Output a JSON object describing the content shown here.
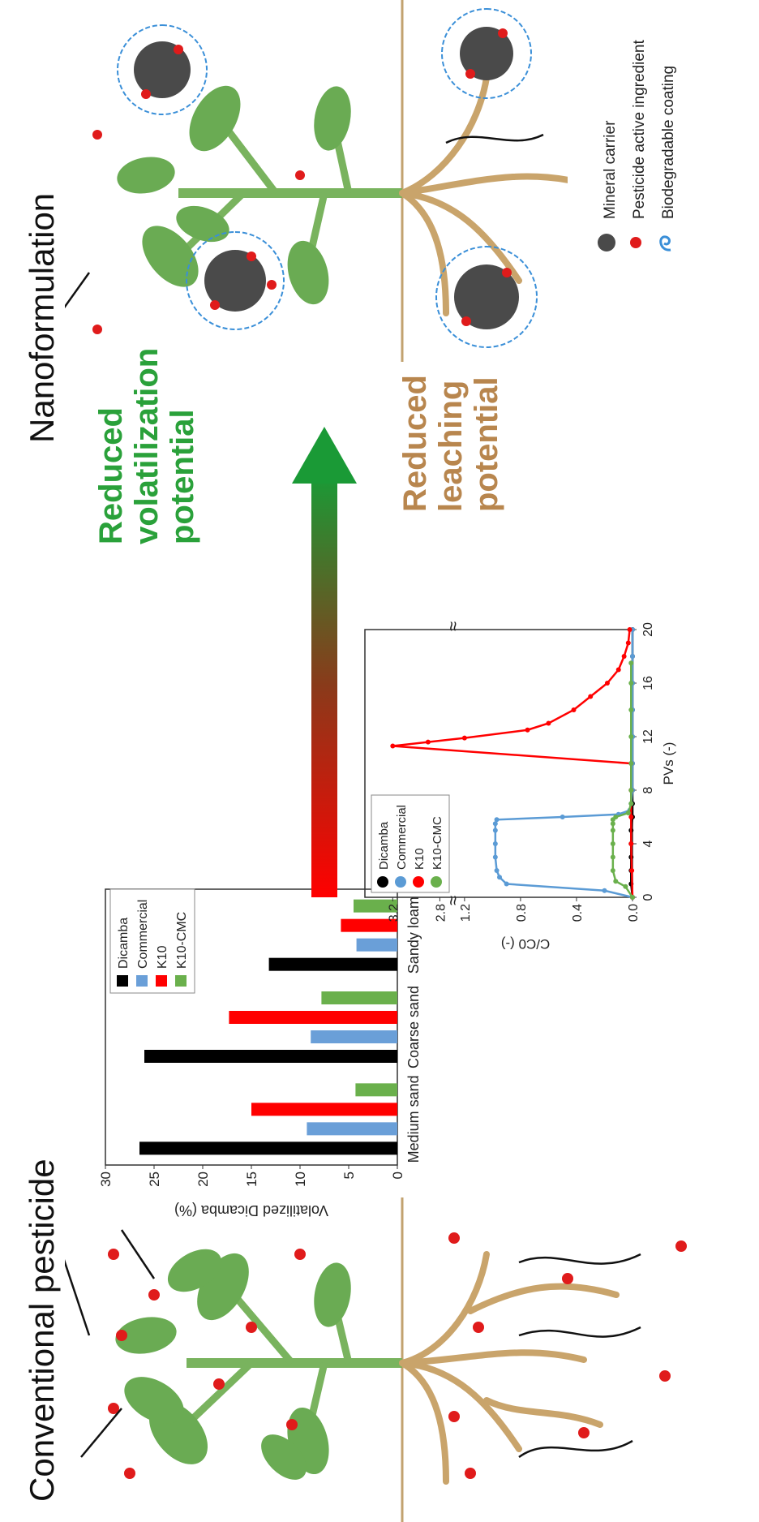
{
  "panels": {
    "left_title": "Conventional pesticide",
    "right_title": "Nanoformulation"
  },
  "effects": {
    "volatilization_lines": [
      "Reduced",
      "volatilization",
      "potential"
    ],
    "leaching_lines": [
      "Reduced",
      "leaching",
      "potential"
    ],
    "arrow_colors": {
      "start": "#ff0000",
      "end": "#1a9a36"
    }
  },
  "legend": {
    "mineral_carrier": "Mineral carrier",
    "pesticide_active": "Pesticide active ingredient",
    "biodegradable_coating": "Biodegradable coating"
  },
  "colors": {
    "leaf": "#6aab53",
    "stem": "#79b35e",
    "root": "#c9a46b",
    "ground": "#c2a26f",
    "droplet": "#e01b1b",
    "carrier": "#4a4a4a",
    "coating": "#3a8fd8"
  },
  "chart_data": [
    {
      "type": "bar",
      "ylabel": "Volatilized Dicamba (%)",
      "ylim": [
        0,
        30
      ],
      "yticks": [
        "0",
        "5",
        "10",
        "15",
        "20",
        "25",
        "30"
      ],
      "categories": [
        "Medium sand",
        "Coarse sand",
        "Sandy loam"
      ],
      "legend_position": "top-right",
      "series": [
        {
          "name": "Dicamba",
          "color": "#000000",
          "values": [
            26.5,
            26.0,
            13.2
          ]
        },
        {
          "name": "Commercial",
          "color": "#6a9fd8",
          "values": [
            9.3,
            8.9,
            4.2
          ]
        },
        {
          "name": "K10",
          "color": "#ff0000",
          "values": [
            15.0,
            17.3,
            5.8
          ]
        },
        {
          "name": "K10-CMC",
          "color": "#6ab04c",
          "values": [
            4.3,
            7.8,
            4.5
          ]
        }
      ]
    },
    {
      "type": "scatter",
      "xlabel": "PVs (-)",
      "ylabel": "C/C0 (-)",
      "xlim": [
        0,
        20
      ],
      "xticks": [
        "0",
        "4",
        "8",
        "12",
        "16",
        "20"
      ],
      "yticks": [
        "0.0",
        "0.4",
        "0.8",
        "1.2",
        "2.8",
        "3.2"
      ],
      "broken_axis_mark": "≈",
      "legend_position": "top-right",
      "series": [
        {
          "name": "Dicamba",
          "color": "#000000",
          "x": [
            0,
            1,
            2,
            3,
            4,
            5,
            6,
            7,
            8,
            10,
            12,
            14,
            16,
            18,
            20
          ],
          "y": [
            0,
            0.01,
            0.01,
            0.01,
            0.01,
            0.01,
            0,
            0,
            0,
            0,
            0,
            0,
            0,
            0,
            0
          ]
        },
        {
          "name": "Commercial",
          "color": "#5b9bd5",
          "x": [
            0,
            0.5,
            1.0,
            1.5,
            2.0,
            3.0,
            4.0,
            5.0,
            5.5,
            5.8,
            6.0,
            6.2,
            6.5,
            7.0,
            8.0,
            10,
            12,
            14,
            16,
            18,
            20
          ],
          "y": [
            0,
            0.2,
            0.9,
            0.95,
            0.97,
            0.98,
            0.98,
            0.98,
            0.98,
            0.97,
            0.5,
            0.1,
            0.02,
            0.01,
            0,
            0,
            0,
            0,
            0,
            0,
            0
          ]
        },
        {
          "name": "K10",
          "color": "#ff0000",
          "x": [
            0,
            2,
            4,
            6,
            8,
            10,
            11.3,
            11.6,
            11.9,
            12.5,
            13,
            14,
            15,
            16,
            17,
            18,
            19,
            20
          ],
          "y": [
            0,
            0.005,
            0.01,
            0.01,
            0.01,
            0.01,
            3.2,
            2.9,
            1.2,
            0.75,
            0.6,
            0.42,
            0.3,
            0.18,
            0.1,
            0.06,
            0.03,
            0.02
          ]
        },
        {
          "name": "K10-CMC",
          "color": "#6ab04c",
          "x": [
            0,
            0.8,
            1.2,
            2,
            3,
            4,
            5,
            5.5,
            5.8,
            6.0,
            6.3,
            7,
            8,
            10,
            12,
            14,
            16,
            17.5
          ],
          "y": [
            0,
            0.05,
            0.12,
            0.14,
            0.14,
            0.14,
            0.14,
            0.14,
            0.14,
            0.12,
            0.03,
            0.01,
            0.01,
            0.01,
            0.01,
            0.01,
            0.01,
            0.01
          ]
        }
      ]
    }
  ]
}
